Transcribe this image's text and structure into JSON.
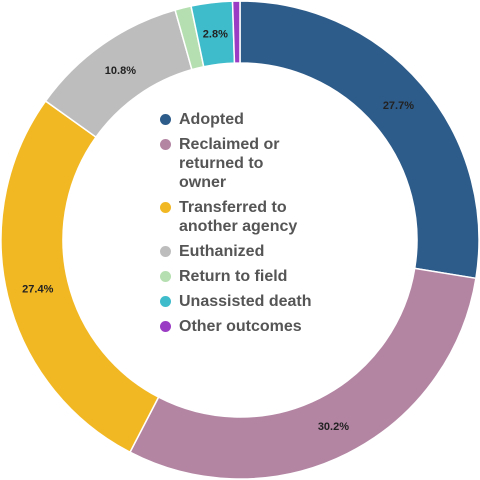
{
  "chart_data": {
    "type": "pie",
    "variant": "donut",
    "title": "",
    "categories": [
      "Adopted",
      "Reclaimed or returned to owner",
      "Transferred to another agency",
      "Euthanized",
      "Return to field",
      "Unassisted death",
      "Other outcomes"
    ],
    "values": [
      27.7,
      30.2,
      27.4,
      10.8,
      1.1,
      2.8,
      0.5
    ],
    "data_labels": [
      "27.7%",
      "30.2%",
      "27.4%",
      "10.8%",
      "",
      "2.8%",
      ""
    ],
    "legend_labels": [
      [
        "Adopted"
      ],
      [
        "Reclaimed or",
        "returned to",
        "owner"
      ],
      [
        "Transferred to",
        "another agency"
      ],
      [
        "Euthanized"
      ],
      [
        "Return to field"
      ],
      [
        "Unassisted death"
      ],
      [
        "Other outcomes"
      ]
    ],
    "colors": [
      "#2e5c8a",
      "#b385a3",
      "#f2b824",
      "#bdbdbd",
      "#b5dfb0",
      "#3fbccb",
      "#9b3cc4"
    ],
    "legend_position": "center"
  }
}
